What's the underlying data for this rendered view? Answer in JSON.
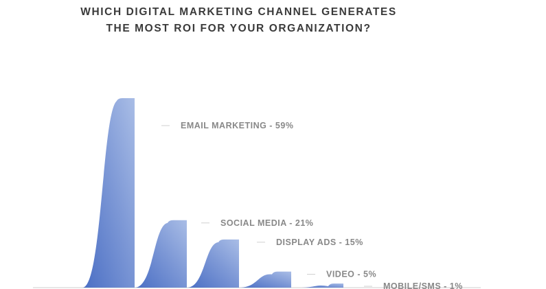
{
  "title_lines": [
    "WHICH DIGITAL MARKETING CHANNEL GENERATES",
    "THE MOST ROI FOR YOUR ORGANIZATION?"
  ],
  "colors": {
    "bar_light": "#a9bde6",
    "bar_mid": "#7d98d6",
    "bar_dark": "#4a6ec4",
    "baseline": "#cfcfcf",
    "leader": "#cfcfcf"
  },
  "chart_data": {
    "type": "bar",
    "style": "curved-peak area shapes",
    "categories": [
      "EMAIL MARKETING",
      "SOCIAL MEDIA",
      "DISPLAY ADS",
      "VIDEO",
      "MOBILE/SMS"
    ],
    "values": [
      59,
      21,
      15,
      5,
      1
    ],
    "unit": "%",
    "labels": [
      "EMAIL MARKETING - 59%",
      "SOCIAL MEDIA - 21%",
      "DISPLAY ADS - 15%",
      "VIDEO - 5%",
      "MOBILE/SMS - 1%"
    ],
    "title": "WHICH DIGITAL MARKETING CHANNEL GENERATES THE MOST ROI FOR YOUR ORGANIZATION?",
    "xlabel": "",
    "ylabel": "",
    "ylim": [
      0,
      59
    ],
    "grid": false,
    "legend": "none"
  }
}
